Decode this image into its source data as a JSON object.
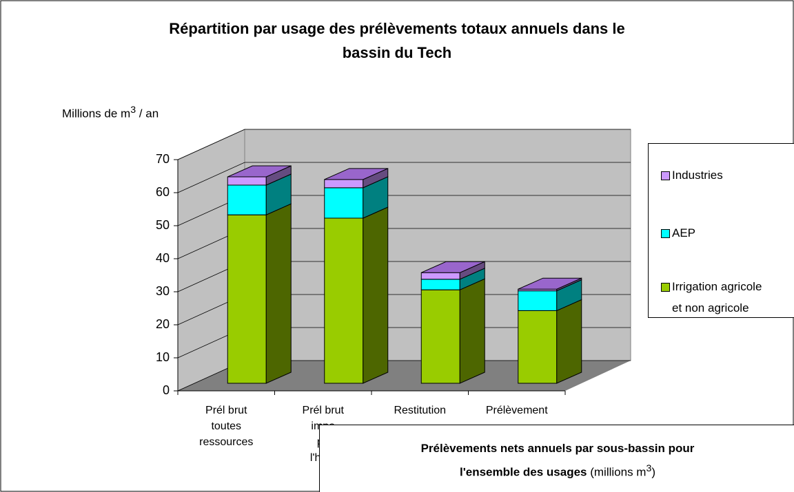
{
  "chart_data": {
    "type": "bar3d_stacked",
    "title": "Répartition par usage des prélèvements totaux annuels dans le\nbassin du Tech",
    "y_label": "Millions de m",
    "y_label_sup": "3",
    "y_label_end": " / an",
    "categories": [
      "Prél brut\ntoutes\nressources",
      "Prél brut\nimpa\npo\nl'hydr",
      "Restitution",
      "Prélèvement"
    ],
    "series": [
      {
        "name": "Irrigation agricole\net non agricole",
        "color": "#99cc00",
        "side": "#4d6600",
        "values": [
          51,
          50,
          28.3,
          22
        ]
      },
      {
        "name": "AEP",
        "color": "#00ffff",
        "side": "#008080",
        "values": [
          9,
          9.2,
          3.2,
          6
        ]
      },
      {
        "name": "Industries",
        "color": "#cc99ff",
        "side": "#664c80",
        "values": [
          2.5,
          2.5,
          2,
          0.5
        ]
      }
    ],
    "ylim": [
      0,
      70
    ],
    "yticks": [
      0,
      10,
      20,
      30,
      40,
      50,
      60,
      70
    ],
    "grid": true,
    "overlay": {
      "line1": "Prélèvements nets annuels par sous-bassin pour",
      "line2_bold": "l'ensemble des usages",
      "line2_rest": " (millions m",
      "line2_sup": "3",
      "line2_end": ")"
    }
  }
}
